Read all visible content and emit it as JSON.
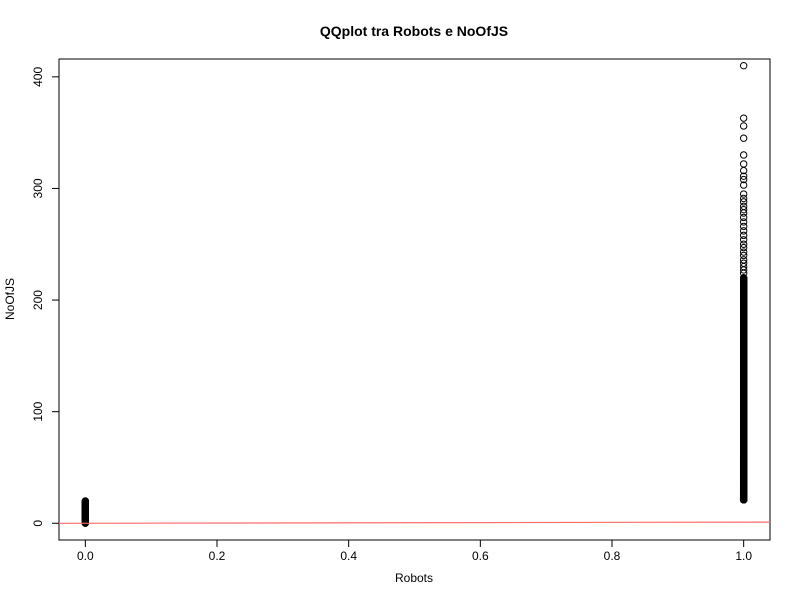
{
  "chart_data": {
    "type": "scatter",
    "title": "QQplot tra Robots e NoOfJS",
    "xlabel": "Robots",
    "ylabel": "NoOfJS",
    "xlim": [
      -0.04,
      1.04
    ],
    "ylim": [
      -15,
      416
    ],
    "grid": false,
    "x_ticks": [
      "0.0",
      "0.2",
      "0.4",
      "0.6",
      "0.8",
      "1.0"
    ],
    "y_ticks": [
      "0",
      "100",
      "200",
      "300",
      "400"
    ],
    "marker": "open-circle",
    "colors": {
      "points": "#000000",
      "reference_line": "#ff6b6b"
    },
    "reference_line": {
      "x": [
        -0.04,
        1.04
      ],
      "y": [
        -0.04,
        1.04
      ]
    },
    "clusters": [
      {
        "x": 0,
        "y_from": 0,
        "y_to": 20,
        "count": 70,
        "distribution": "uniform"
      },
      {
        "x": 1,
        "y_from": 21,
        "y_to": 220,
        "count": 900,
        "distribution": "dense"
      }
    ],
    "points": [
      {
        "x": 1,
        "y": 410
      },
      {
        "x": 1,
        "y": 363
      },
      {
        "x": 1,
        "y": 356
      },
      {
        "x": 1,
        "y": 345
      },
      {
        "x": 1,
        "y": 330
      },
      {
        "x": 1,
        "y": 322
      },
      {
        "x": 1,
        "y": 316
      },
      {
        "x": 1,
        "y": 311
      },
      {
        "x": 1,
        "y": 308
      },
      {
        "x": 1,
        "y": 303
      },
      {
        "x": 1,
        "y": 295
      },
      {
        "x": 1,
        "y": 291
      },
      {
        "x": 1,
        "y": 288
      },
      {
        "x": 1,
        "y": 284
      },
      {
        "x": 1,
        "y": 281
      },
      {
        "x": 1,
        "y": 278
      },
      {
        "x": 1,
        "y": 274
      },
      {
        "x": 1,
        "y": 270
      },
      {
        "x": 1,
        "y": 266
      },
      {
        "x": 1,
        "y": 262
      },
      {
        "x": 1,
        "y": 258
      },
      {
        "x": 1,
        "y": 254
      },
      {
        "x": 1,
        "y": 250
      },
      {
        "x": 1,
        "y": 247
      },
      {
        "x": 1,
        "y": 243
      },
      {
        "x": 1,
        "y": 240
      },
      {
        "x": 1,
        "y": 236
      },
      {
        "x": 1,
        "y": 233
      },
      {
        "x": 1,
        "y": 230
      },
      {
        "x": 1,
        "y": 227
      },
      {
        "x": 1,
        "y": 224
      }
    ]
  }
}
